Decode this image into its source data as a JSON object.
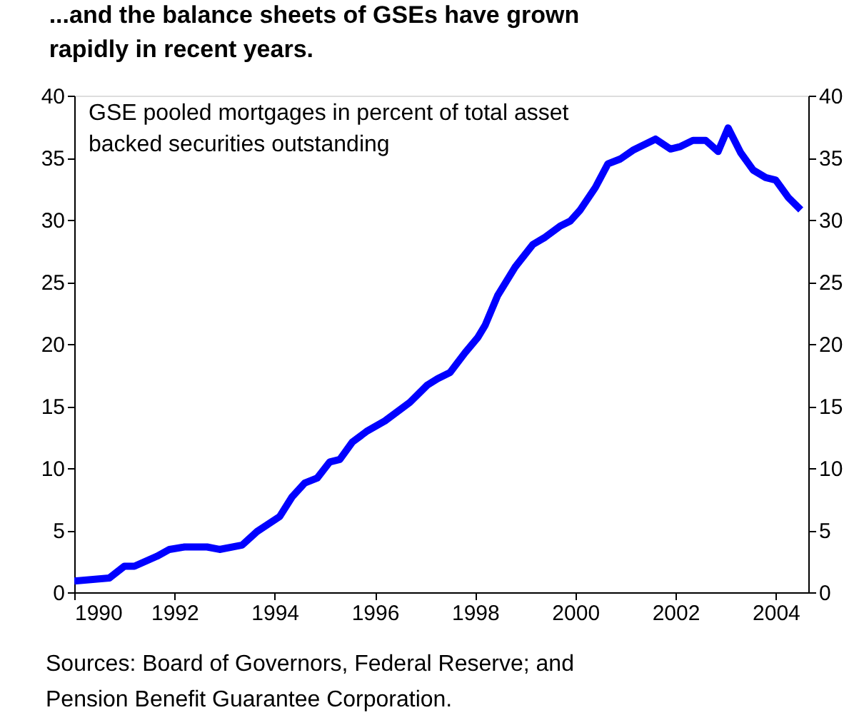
{
  "chart_data": {
    "type": "line",
    "title": "...and the balance sheets of GSEs have grown rapidly in recent years.",
    "annotations": [
      "GSE pooled mortgages in percent of total asset backed securities outstanding",
      "Sources: Board of Governors, Federal Reserve; and Pension Benefit Guarantee Corporation."
    ],
    "x": [
      1990,
      1990.7,
      1991.0,
      1991.2,
      1991.65,
      1991.9,
      1992.2,
      1992.65,
      1992.9,
      1993.35,
      1993.65,
      1994.1,
      1994.35,
      1994.6,
      1994.85,
      1995.1,
      1995.3,
      1995.55,
      1995.85,
      1996.2,
      1996.7,
      1997.05,
      1997.25,
      1997.5,
      1997.8,
      1998.05,
      1998.2,
      1998.45,
      1998.8,
      1999.15,
      1999.4,
      1999.7,
      1999.9,
      2000.1,
      2000.4,
      2000.65,
      2000.9,
      2001.15,
      2001.6,
      2001.9,
      2002.1,
      2002.35,
      2002.6,
      2002.85,
      2003.05,
      2003.3,
      2003.55,
      2003.8,
      2004.0,
      2004.25,
      2004.5
    ],
    "series": [
      {
        "color": "#0000ff",
        "values": [
          0.9,
          1.15,
          2.1,
          2.1,
          2.9,
          3.45,
          3.65,
          3.65,
          3.45,
          3.8,
          4.9,
          6.1,
          7.7,
          8.8,
          9.2,
          10.5,
          10.7,
          12.1,
          13.0,
          13.8,
          15.3,
          16.7,
          17.2,
          17.7,
          19.3,
          20.5,
          21.5,
          23.9,
          26.2,
          28.0,
          28.6,
          29.5,
          29.9,
          30.8,
          32.6,
          34.5,
          34.9,
          35.6,
          36.5,
          35.7,
          35.9,
          36.4,
          36.4,
          35.5,
          37.4,
          35.4,
          34.0,
          33.4,
          33.2,
          31.8,
          30.8
        ]
      }
    ],
    "xlim": [
      1990,
      2004.65
    ],
    "xticks": [
      1990,
      1992,
      1994,
      1996,
      1998,
      2000,
      2002,
      2004
    ],
    "ylim": [
      0,
      40
    ],
    "yticks": [
      0,
      5,
      10,
      15,
      20,
      25,
      30,
      35,
      40
    ],
    "y2lim": [
      0,
      40
    ],
    "y2ticks": [
      0,
      5,
      10,
      15,
      20,
      25,
      30,
      35,
      40
    ],
    "grid": false,
    "line_style": "solid"
  }
}
